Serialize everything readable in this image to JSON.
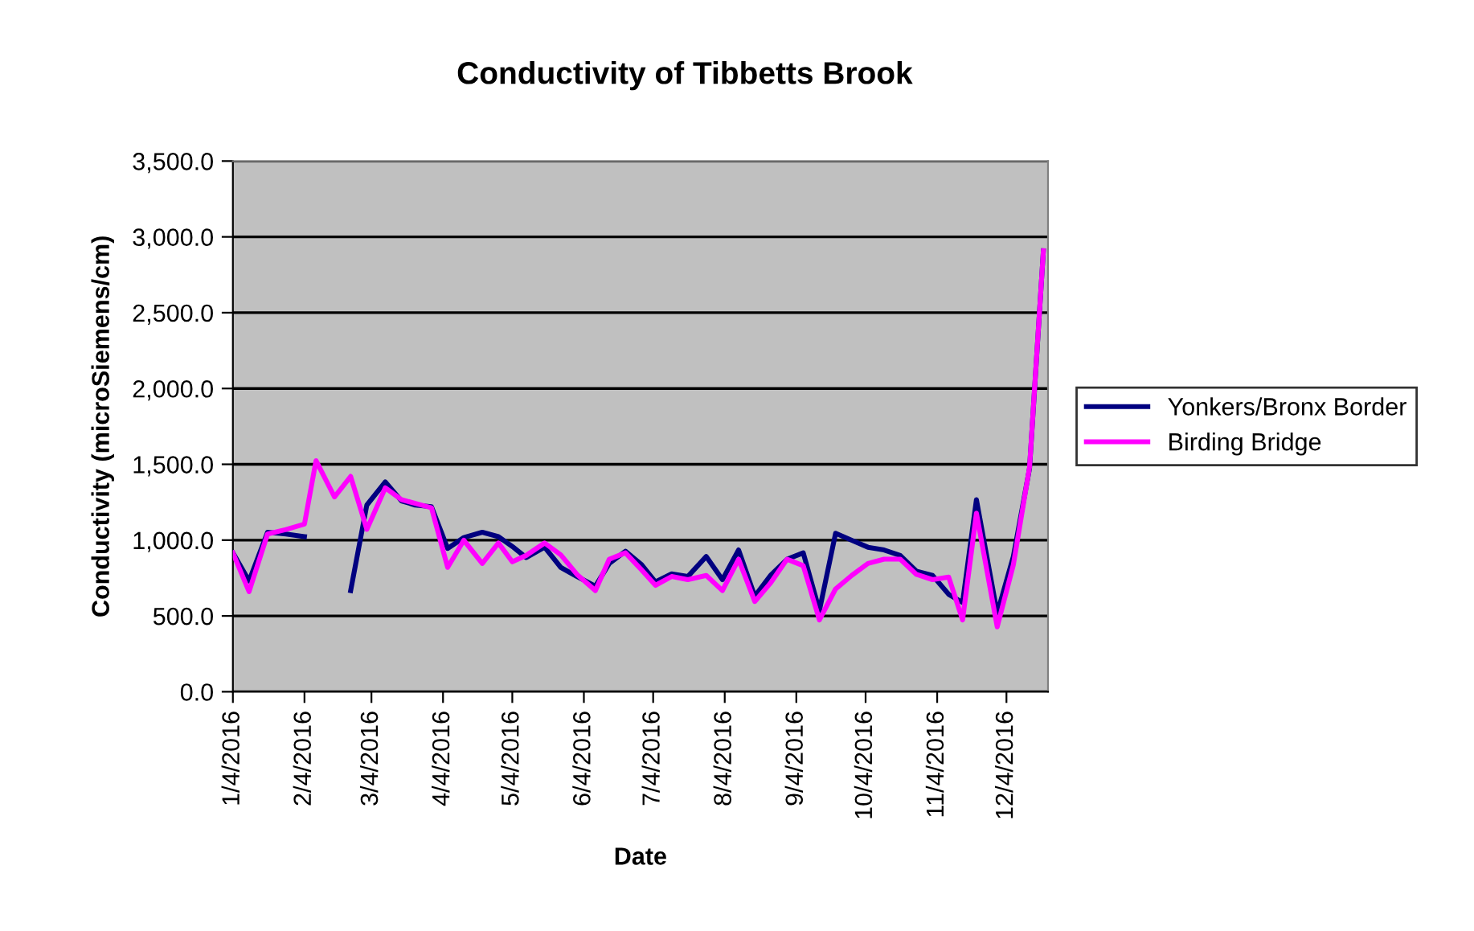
{
  "chart_data": {
    "type": "line",
    "title": "Conductivity of Tibbetts Brook",
    "xlabel": "Date",
    "ylabel": "Conductivity (microSiemens/cm)",
    "x": [
      "2016-01-04",
      "2016-01-11",
      "2016-01-19",
      "2016-01-27",
      "2016-02-04",
      "2016-02-09",
      "2016-02-17",
      "2016-02-24",
      "2016-03-02",
      "2016-03-10",
      "2016-03-17",
      "2016-03-23",
      "2016-03-30",
      "2016-04-06",
      "2016-04-13",
      "2016-04-21",
      "2016-04-28",
      "2016-05-04",
      "2016-05-10",
      "2016-05-18",
      "2016-05-25",
      "2016-06-01",
      "2016-06-09",
      "2016-06-15",
      "2016-06-22",
      "2016-06-29",
      "2016-07-05",
      "2016-07-12",
      "2016-07-19",
      "2016-07-27",
      "2016-08-03",
      "2016-08-10",
      "2016-08-17",
      "2016-08-24",
      "2016-08-31",
      "2016-09-07",
      "2016-09-14",
      "2016-09-21",
      "2016-09-28",
      "2016-10-05",
      "2016-10-12",
      "2016-10-19",
      "2016-10-26",
      "2016-11-02",
      "2016-11-09",
      "2016-11-15",
      "2016-11-21",
      "2016-11-30",
      "2016-12-07",
      "2016-12-14",
      "2016-12-20"
    ],
    "series": [
      {
        "name": "Yonkers/Bronx Border",
        "color": "#000080",
        "values": [
          916,
          731,
          1052,
          1040,
          1023,
          null,
          null,
          667,
          1231,
          1384,
          1259,
          1231,
          1220,
          945,
          1017,
          1052,
          1023,
          958,
          885,
          953,
          820,
          760,
          696,
          846,
          927,
          838,
          724,
          777,
          760,
          892,
          739,
          935,
          630,
          770,
          874,
          916,
          535,
          1045,
          999,
          953,
          935,
          899,
          795,
          767,
          642,
          589,
          1267,
          517,
          892,
          1473,
          2908
        ]
      },
      {
        "name": "Birding Bridge",
        "color": "#ff00ff",
        "values": [
          916,
          660,
          1040,
          1070,
          1106,
          1524,
          1285,
          1420,
          1071,
          1345,
          1267,
          1242,
          1213,
          820,
          999,
          846,
          981,
          857,
          899,
          981,
          903,
          774,
          667,
          874,
          916,
          803,
          702,
          760,
          739,
          767,
          667,
          874,
          595,
          720,
          874,
          831,
          474,
          678,
          767,
          846,
          874,
          874,
          774,
          739,
          756,
          474,
          1178,
          428,
          838,
          1481,
          2908
        ]
      }
    ],
    "xlim": [
      "2016-01-04",
      "2016-12-22"
    ],
    "xticks": [
      {
        "value": "2016-01-04",
        "label": "1/4/2016"
      },
      {
        "value": "2016-02-04",
        "label": "2/4/2016"
      },
      {
        "value": "2016-03-04",
        "label": "3/4/2016"
      },
      {
        "value": "2016-04-04",
        "label": "4/4/2016"
      },
      {
        "value": "2016-05-04",
        "label": "5/4/2016"
      },
      {
        "value": "2016-06-04",
        "label": "6/4/2016"
      },
      {
        "value": "2016-07-04",
        "label": "7/4/2016"
      },
      {
        "value": "2016-08-04",
        "label": "8/4/2016"
      },
      {
        "value": "2016-09-04",
        "label": "9/4/2016"
      },
      {
        "value": "2016-10-04",
        "label": "10/4/2016"
      },
      {
        "value": "2016-11-04",
        "label": "11/4/2016"
      },
      {
        "value": "2016-12-04",
        "label": "12/4/2016"
      }
    ],
    "ylim": [
      0,
      3500
    ],
    "yticks": [
      {
        "value": 0,
        "label": "0.0"
      },
      {
        "value": 500,
        "label": "500.0"
      },
      {
        "value": 1000,
        "label": "1,000.0"
      },
      {
        "value": 1500,
        "label": "1,500.0"
      },
      {
        "value": 2000,
        "label": "2,000.0"
      },
      {
        "value": 2500,
        "label": "2,500.0"
      },
      {
        "value": 3000,
        "label": "3,000.0"
      },
      {
        "value": 3500,
        "label": "3,500.0"
      }
    ],
    "grid": "y",
    "legend": "right",
    "marker": "none",
    "line_style": "solid"
  }
}
